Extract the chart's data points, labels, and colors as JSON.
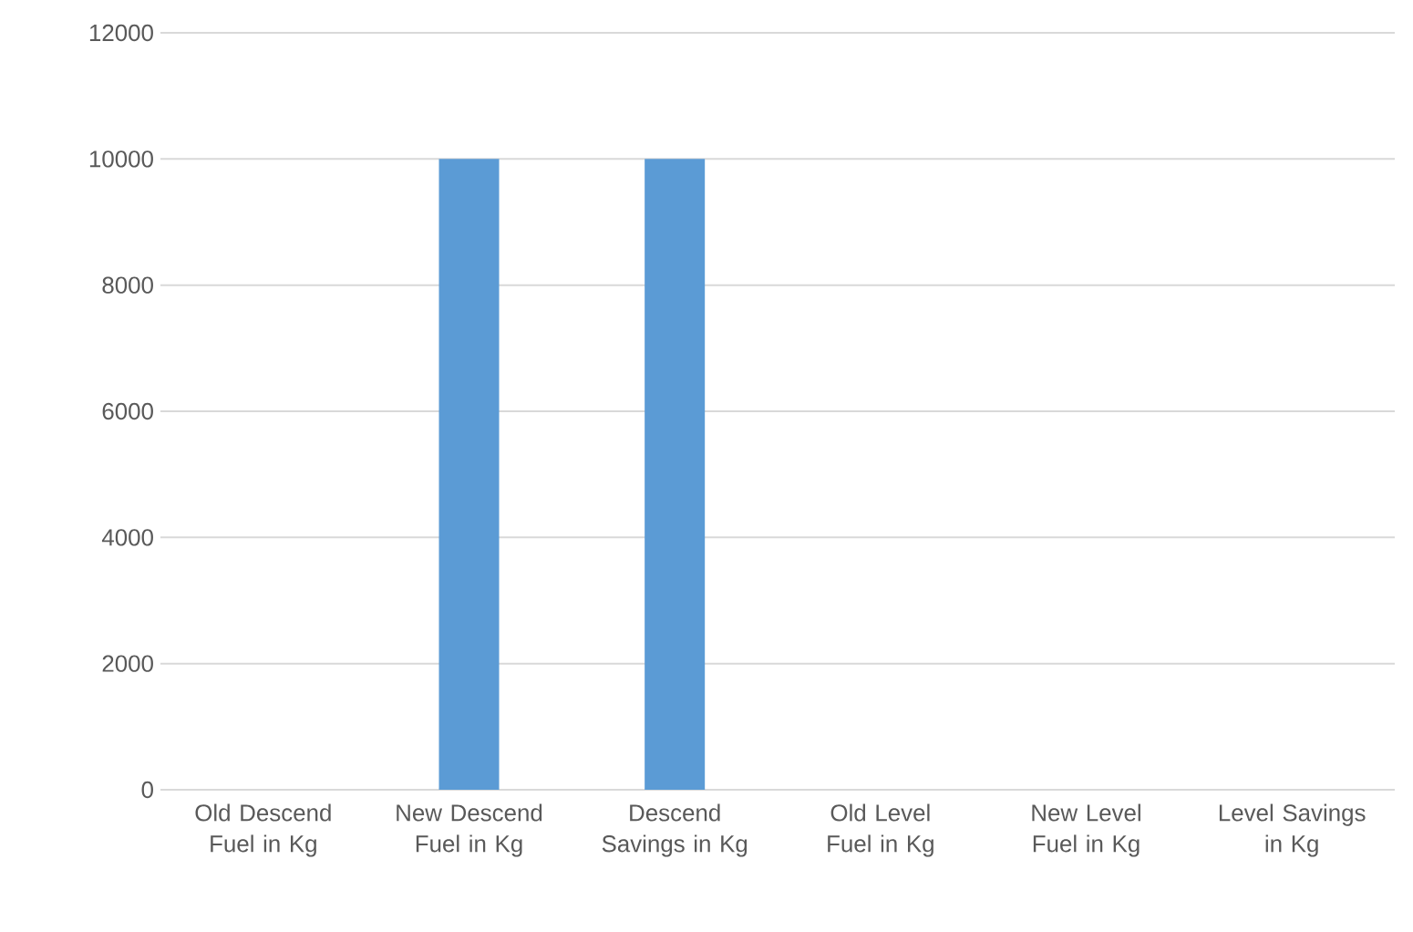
{
  "chart_data": {
    "type": "bar",
    "categories": [
      "Old Descend Fuel in Kg",
      "New Descend Fuel in Kg",
      "Descend Savings in Kg",
      "Old Level Fuel in Kg",
      "New Level Fuel in Kg",
      "Level Savings in Kg"
    ],
    "values": [
      0,
      10000,
      10000,
      0,
      0,
      0
    ],
    "color": "#5b9bd5",
    "ylim": [
      0,
      12000
    ],
    "yticks": [
      0,
      2000,
      4000,
      6000,
      8000,
      10000,
      12000
    ],
    "grid": "y"
  }
}
